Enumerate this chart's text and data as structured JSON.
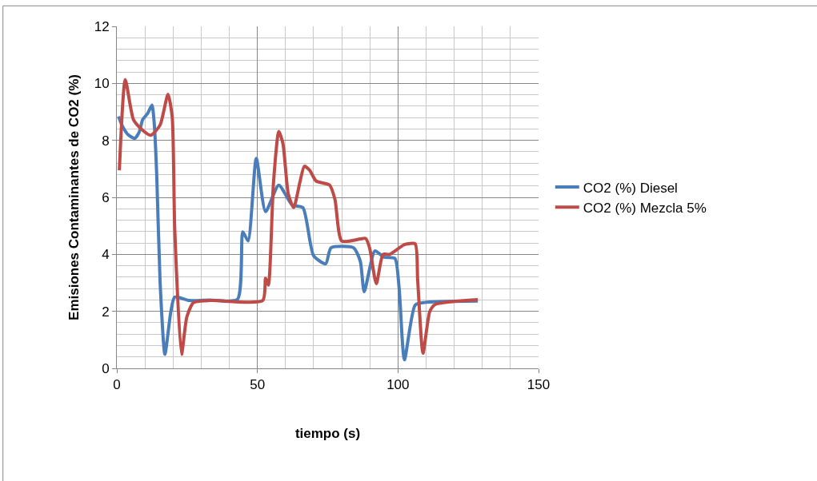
{
  "chart_data": {
    "type": "line",
    "xlabel": "tiempo (s)",
    "ylabel": "Emisiones Contaminantes de CO2 (%)",
    "xlim": [
      0,
      150
    ],
    "xticks": [
      0,
      50,
      100,
      150
    ],
    "ylim": [
      0,
      12
    ],
    "yticks": [
      0,
      2,
      4,
      6,
      8,
      10,
      12
    ],
    "grid": true,
    "legend": "right",
    "line_style": "solid",
    "marker": "none",
    "series": [
      {
        "name": "CO2 (%) Diesel",
        "color": "#4a7ebb",
        "x": [
          0.6,
          2,
          4,
          6.4,
          8,
          9.2,
          11,
          12.5,
          13.3,
          14.2,
          15.4,
          17.1,
          19.2,
          20.6,
          25.8,
          33,
          42.9,
          44.8,
          46.7,
          49.6,
          52.9,
          57.6,
          62.4,
          66.2,
          70,
          74.3,
          76.2,
          84.2,
          86.6,
          88,
          91.8,
          95,
          98.9,
          100.4,
          102.3,
          106.1,
          109.4,
          128.4
        ],
        "values": [
          8.84,
          8.5,
          8.2,
          8.07,
          8.3,
          8.73,
          8.95,
          9.24,
          8.6,
          6.76,
          3.0,
          0.49,
          1.98,
          2.5,
          2.38,
          2.4,
          2.42,
          4.79,
          4.47,
          7.37,
          5.5,
          6.43,
          5.73,
          5.64,
          3.95,
          3.67,
          4.23,
          4.23,
          3.76,
          2.69,
          4.12,
          3.9,
          3.86,
          2.83,
          0.3,
          2.22,
          2.31,
          2.36
        ]
      },
      {
        "name": "CO2 (%) Mezcla 5%",
        "color": "#be4b48",
        "x": [
          0.9,
          3,
          5.9,
          8.7,
          12.1,
          15.4,
          18.2,
          19.7,
          20.6,
          23,
          24.9,
          27.3,
          33.4,
          51.9,
          52.9,
          53.9,
          55.7,
          57.6,
          59.1,
          61,
          62.9,
          65.2,
          66.7,
          68.6,
          70.9,
          75.7,
          77.6,
          80,
          86.6,
          88.5,
          89.9,
          92.3,
          94.7,
          97.1,
          102.3,
          106.1,
          107,
          108.9,
          111.3,
          113.2,
          128.4
        ],
        "values": [
          6.95,
          10.13,
          8.73,
          8.4,
          8.18,
          8.54,
          9.62,
          8.82,
          4.88,
          0.49,
          1.8,
          2.31,
          2.38,
          2.38,
          3.16,
          2.92,
          6.48,
          8.31,
          7.88,
          6.11,
          5.64,
          6.57,
          7.09,
          6.95,
          6.57,
          6.43,
          5.92,
          4.47,
          4.54,
          4.56,
          4.23,
          2.97,
          4.0,
          4.0,
          4.34,
          4.37,
          3.11,
          0.53,
          1.99,
          2.24,
          2.41
        ]
      }
    ]
  }
}
